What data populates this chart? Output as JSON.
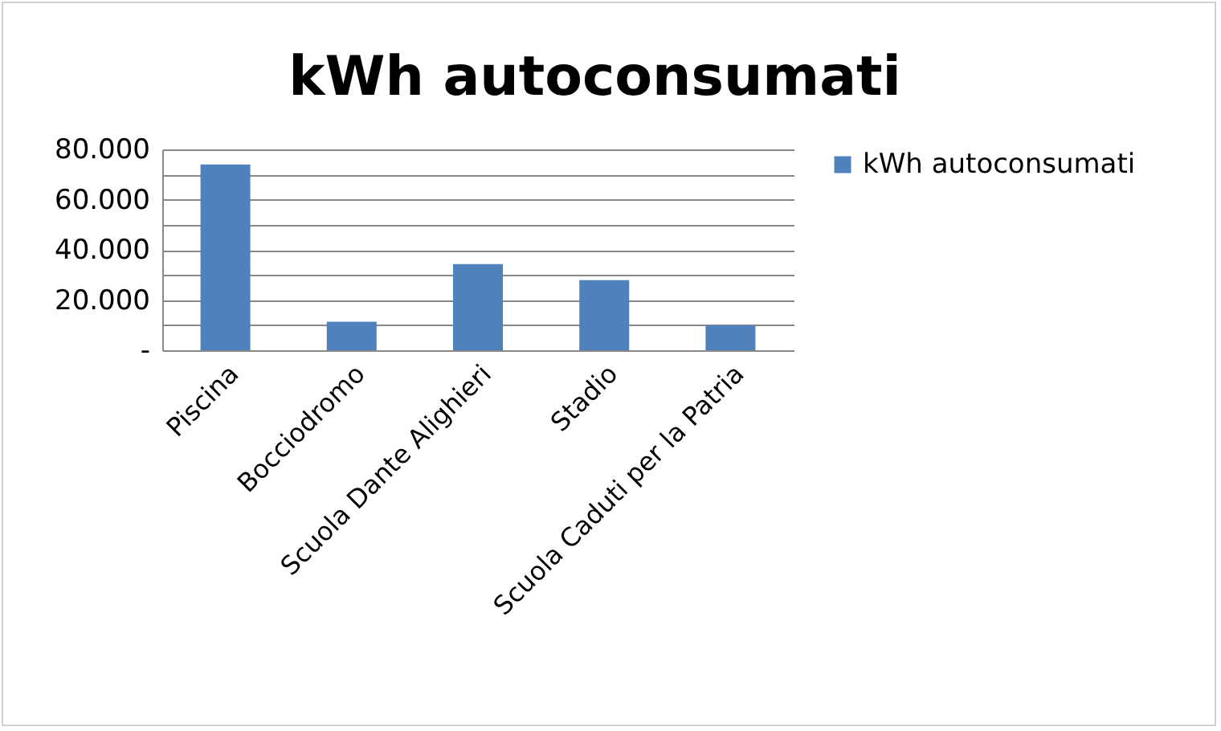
{
  "chart_data": {
    "type": "bar",
    "title": "kWh autoconsumati",
    "categories": [
      "Piscina",
      "Bocciodromo",
      "Scuola Dante Alighieri",
      "Stadio",
      "Scuola Caduti per la Patria"
    ],
    "series": [
      {
        "name": "kWh autoconsumati",
        "color": "#4f81bd",
        "values": [
          74000,
          11400,
          34300,
          27900,
          9900
        ]
      }
    ],
    "ylim": [
      0,
      80000
    ],
    "yticks": [
      {
        "value": 0,
        "label": "-"
      },
      {
        "value": 10000,
        "label": null
      },
      {
        "value": 20000,
        "label": "20.000"
      },
      {
        "value": 30000,
        "label": null
      },
      {
        "value": 40000,
        "label": "40.000"
      },
      {
        "value": 50000,
        "label": null
      },
      {
        "value": 60000,
        "label": "60.000"
      },
      {
        "value": 70000,
        "label": null
      },
      {
        "value": 80000,
        "label": "80.000"
      }
    ],
    "grid": "y",
    "legend": "right"
  }
}
